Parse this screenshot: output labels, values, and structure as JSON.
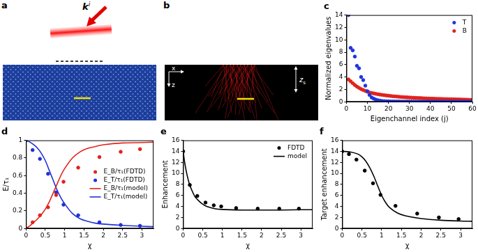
{
  "panel_a": {
    "label": "a",
    "wave_vector": "k",
    "wave_vector_superscript": "i"
  },
  "panel_b": {
    "label": "b",
    "axis_x": "x",
    "axis_z": "z",
    "depth_label": "z",
    "depth_subscript": "s"
  },
  "chart_data": [
    {
      "type": "scatter",
      "title": "c",
      "x_label": "Eigenchannel index (j)",
      "y_label": "Normalized eigenvalues",
      "x": [
        1,
        2,
        3,
        4,
        5,
        6,
        7,
        8,
        9,
        10,
        11,
        12,
        13,
        14,
        15,
        16,
        17,
        18,
        19,
        20,
        21,
        22,
        23,
        24,
        25,
        26,
        27,
        28,
        29,
        30,
        31,
        32,
        33,
        34,
        35,
        36,
        37,
        38,
        39,
        40,
        41,
        42,
        43,
        44,
        45,
        46,
        47,
        48,
        49,
        50,
        51,
        52,
        53,
        54,
        55,
        56,
        57,
        58,
        59,
        60
      ],
      "series": [
        {
          "name": "T",
          "color": "#1f35e0",
          "marker": "circle",
          "values": [
            14,
            8.7,
            8.3,
            7.3,
            5.8,
            5.4,
            4.0,
            3.5,
            2.6,
            1.7,
            1.1,
            0.7,
            0.5,
            0.35,
            0.25,
            0.18,
            0.13,
            0.1,
            0.08,
            0.06,
            0.05,
            0.05,
            0.04,
            0.04,
            0.04,
            0.03,
            0.03,
            0.03,
            0.03,
            0.03,
            0.02,
            0.02,
            0.02,
            0.02,
            0.02,
            0.02,
            0.02,
            0.02,
            0.02,
            0.02,
            0.02,
            0.02,
            0.02,
            0.02,
            0.02,
            0.01,
            0.01,
            0.01,
            0.01,
            0.01,
            0.01,
            0.01,
            0.01,
            0.01,
            0.01,
            0.01,
            0.01,
            0.01,
            0.01,
            0.01
          ]
        },
        {
          "name": "B",
          "color": "#e3221b",
          "marker": "circle",
          "values": [
            3.6,
            3.3,
            3.0,
            2.7,
            2.45,
            2.25,
            2.05,
            1.9,
            1.75,
            1.62,
            1.5,
            1.42,
            1.35,
            1.28,
            1.22,
            1.16,
            1.11,
            1.06,
            1.02,
            0.98,
            0.94,
            0.9,
            0.87,
            0.84,
            0.81,
            0.78,
            0.76,
            0.73,
            0.71,
            0.69,
            0.67,
            0.65,
            0.63,
            0.61,
            0.6,
            0.58,
            0.56,
            0.55,
            0.53,
            0.52,
            0.51,
            0.49,
            0.48,
            0.47,
            0.46,
            0.45,
            0.44,
            0.43,
            0.42,
            0.41,
            0.4,
            0.39,
            0.38,
            0.37,
            0.36,
            0.35,
            0.34,
            0.33,
            0.32,
            0.31
          ]
        }
      ],
      "xlim": [
        0,
        60
      ],
      "xticks": [
        0,
        10,
        20,
        30,
        40,
        50,
        60
      ],
      "ylim": [
        0,
        14
      ],
      "yticks": [
        0,
        2,
        4,
        6,
        8,
        10,
        12,
        14
      ],
      "grid": false,
      "legend": "upper right"
    },
    {
      "type": "scatter",
      "title": "d",
      "x_label": "χ",
      "y_label": "E/τ₁",
      "series": [
        {
          "name": "E_B/τ₁(FDTD)",
          "color": "#e3221b",
          "type": "scatter",
          "marker": "circle",
          "x": [
            0,
            0.17,
            0.36,
            0.57,
            0.78,
            0.97,
            1.35,
            1.9,
            2.45,
            2.95
          ],
          "values": [
            0,
            0.07,
            0.15,
            0.24,
            0.38,
            0.53,
            0.69,
            0.81,
            0.87,
            0.9
          ]
        },
        {
          "name": "E_T/τ₁(FDTD)",
          "color": "#2030d8",
          "type": "scatter",
          "marker": "circle",
          "x": [
            0,
            0.17,
            0.36,
            0.57,
            0.78,
            0.97,
            1.35,
            1.9,
            2.45,
            2.95
          ],
          "values": [
            1.0,
            0.89,
            0.79,
            0.62,
            0.41,
            0.27,
            0.15,
            0.07,
            0.04,
            0.03
          ]
        },
        {
          "name": "E_B/τ₁(model)",
          "color": "#e3221b",
          "type": "line",
          "line_style": "solid",
          "x": [
            0,
            0.1,
            0.2,
            0.3,
            0.4,
            0.5,
            0.6,
            0.7,
            0.8,
            0.9,
            1.0,
            1.2,
            1.4,
            1.6,
            1.8,
            2.0,
            2.5,
            3.0,
            3.3
          ],
          "values": [
            0,
            0.03,
            0.07,
            0.11,
            0.16,
            0.22,
            0.3,
            0.4,
            0.5,
            0.6,
            0.68,
            0.8,
            0.87,
            0.91,
            0.93,
            0.95,
            0.97,
            0.975,
            0.98
          ]
        },
        {
          "name": "E_T/τ₁(model)",
          "color": "#2030d8",
          "type": "line",
          "line_style": "solid",
          "x": [
            0,
            0.1,
            0.2,
            0.3,
            0.4,
            0.5,
            0.6,
            0.7,
            0.8,
            0.9,
            1.0,
            1.2,
            1.4,
            1.6,
            1.8,
            2.0,
            2.5,
            3.0,
            3.3
          ],
          "values": [
            1,
            0.98,
            0.95,
            0.91,
            0.85,
            0.77,
            0.66,
            0.55,
            0.44,
            0.35,
            0.28,
            0.17,
            0.11,
            0.08,
            0.06,
            0.05,
            0.035,
            0.025,
            0.02
          ]
        }
      ],
      "xlim": [
        0,
        3.3
      ],
      "xticks": [
        0,
        0.5,
        1,
        1.5,
        2,
        2.5,
        3
      ],
      "ylim": [
        0,
        1
      ],
      "yticks": [
        0,
        0.2,
        0.4,
        0.6,
        0.8,
        1
      ],
      "grid": false,
      "legend": "right"
    },
    {
      "type": "scatter",
      "title": "e",
      "x_label": "χ",
      "y_label": "Enhancement",
      "series": [
        {
          "name": "FDTD",
          "color": "#000000",
          "type": "scatter",
          "marker": "circle",
          "x": [
            0,
            0.17,
            0.36,
            0.57,
            0.78,
            0.97,
            1.35,
            1.9,
            2.45,
            2.95
          ],
          "values": [
            14,
            7.9,
            5.9,
            4.7,
            4.2,
            4.0,
            3.7,
            3.6,
            3.6,
            3.6
          ]
        },
        {
          "name": "model",
          "color": "#000000",
          "type": "line",
          "line_style": "solid",
          "x": [
            0,
            0.05,
            0.1,
            0.15,
            0.2,
            0.3,
            0.4,
            0.5,
            0.6,
            0.8,
            1.0,
            1.5,
            2.0,
            2.5,
            3.0,
            3.3
          ],
          "values": [
            14,
            11.5,
            9.7,
            8.3,
            7.3,
            5.8,
            5.0,
            4.4,
            4.0,
            3.6,
            3.45,
            3.35,
            3.35,
            3.35,
            3.4,
            3.4
          ]
        }
      ],
      "xlim": [
        0,
        3.3
      ],
      "xticks": [
        0,
        0.5,
        1,
        1.5,
        2,
        2.5,
        3
      ],
      "ylim": [
        0,
        16
      ],
      "yticks": [
        0,
        2,
        4,
        6,
        8,
        10,
        12,
        14,
        16
      ],
      "grid": false,
      "legend": "upper right"
    },
    {
      "type": "scatter",
      "title": "f",
      "x_label": "χ",
      "y_label": "Target enhancement",
      "series": [
        {
          "name": "FDTD",
          "color": "#000000",
          "type": "scatter",
          "marker": "circle",
          "x": [
            0,
            0.17,
            0.36,
            0.57,
            0.78,
            0.97,
            1.35,
            1.9,
            2.45,
            2.95
          ],
          "values": [
            14,
            13.5,
            12.5,
            10.5,
            8.2,
            6.1,
            4.1,
            2.7,
            2.0,
            1.7
          ]
        },
        {
          "name": "model",
          "color": "#000000",
          "type": "line",
          "line_style": "solid",
          "x": [
            0,
            0.2,
            0.4,
            0.5,
            0.6,
            0.7,
            0.8,
            0.9,
            1.0,
            1.1,
            1.2,
            1.4,
            1.6,
            2.0,
            2.5,
            3.0,
            3.3
          ],
          "values": [
            14,
            13.9,
            13.5,
            13,
            12.2,
            11,
            9.5,
            7.7,
            6,
            4.7,
            3.8,
            2.8,
            2.3,
            1.8,
            1.5,
            1.35,
            1.3
          ]
        }
      ],
      "xlim": [
        0,
        3.3
      ],
      "xticks": [
        0,
        0.5,
        1,
        1.5,
        2,
        2.5,
        3
      ],
      "ylim": [
        0,
        16
      ],
      "yticks": [
        0,
        2,
        4,
        6,
        8,
        10,
        12,
        14,
        16
      ],
      "grid": false
    }
  ]
}
